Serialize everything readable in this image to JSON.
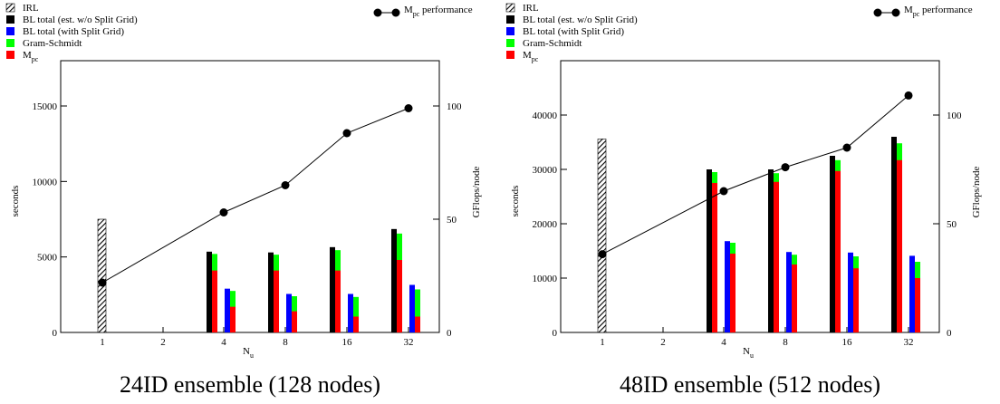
{
  "legend": {
    "irl": "IRL",
    "bl_est": "BL total (est. w/o Split Grid)",
    "bl_split": "BL total (with Split Grid)",
    "gram_schmidt": "Gram-Schmidt",
    "mpc_base": "M",
    "mpc_sub": "pc",
    "perf_label_base": "M",
    "perf_label_sub": "pc",
    "perf_label_tail": " performance"
  },
  "colors": {
    "bl_est": "#000000",
    "bl_split": "#0000ff",
    "gram_schmidt": "#00ff00",
    "mpc": "#ff0000",
    "perf_line": "#000000"
  },
  "chart_data": [
    {
      "type": "bar",
      "title": "24ID ensemble (128 nodes)",
      "xlabel_base": "N",
      "xlabel_sub": "u",
      "ylabel": "seconds",
      "y2label": "GFlops/node",
      "categories": [
        "1",
        "2",
        "4",
        "8",
        "16",
        "32"
      ],
      "ylim": [
        0,
        18000
      ],
      "yticks": [
        0,
        5000,
        10000,
        15000
      ],
      "y2lim": [
        0,
        120
      ],
      "y2ticks": [
        0,
        50,
        100
      ],
      "irl": [
        7500,
        null,
        null,
        null,
        null,
        null
      ],
      "bl_est": [
        null,
        null,
        5350,
        5300,
        5650,
        6850
      ],
      "bl_est_gs": [
        null,
        null,
        5200,
        5150,
        5450,
        6550
      ],
      "bl_est_mpc": [
        null,
        null,
        4100,
        4100,
        4100,
        4800
      ],
      "bl_split": [
        null,
        null,
        2900,
        2550,
        2550,
        3150
      ],
      "bl_split_gs": [
        null,
        null,
        2750,
        2400,
        2350,
        2850
      ],
      "bl_split_mpc": [
        null,
        null,
        1700,
        1400,
        1050,
        1050
      ],
      "perf": [
        22,
        null,
        53,
        65,
        88,
        99
      ]
    },
    {
      "type": "bar",
      "title": "48ID ensemble (512 nodes)",
      "xlabel_base": "N",
      "xlabel_sub": "u",
      "ylabel": "seconds",
      "y2label": "GFlops/node",
      "categories": [
        "1",
        "2",
        "4",
        "8",
        "16",
        "32"
      ],
      "ylim": [
        0,
        50000
      ],
      "yticks": [
        0,
        10000,
        20000,
        30000,
        40000
      ],
      "y2lim": [
        0,
        125
      ],
      "y2ticks": [
        0,
        50,
        100
      ],
      "irl": [
        35600,
        null,
        null,
        null,
        null,
        null
      ],
      "bl_est": [
        null,
        null,
        30000,
        30000,
        32500,
        36000
      ],
      "bl_est_gs": [
        null,
        null,
        29500,
        29300,
        31700,
        34800
      ],
      "bl_est_mpc": [
        null,
        null,
        27500,
        27700,
        29700,
        31700
      ],
      "bl_split": [
        null,
        null,
        16800,
        14800,
        14700,
        14100
      ],
      "bl_split_gs": [
        null,
        null,
        16500,
        14300,
        14000,
        13000
      ],
      "bl_split_mpc": [
        null,
        null,
        14500,
        12500,
        11800,
        10000
      ],
      "perf": [
        36,
        null,
        65,
        76,
        85,
        109
      ]
    }
  ]
}
